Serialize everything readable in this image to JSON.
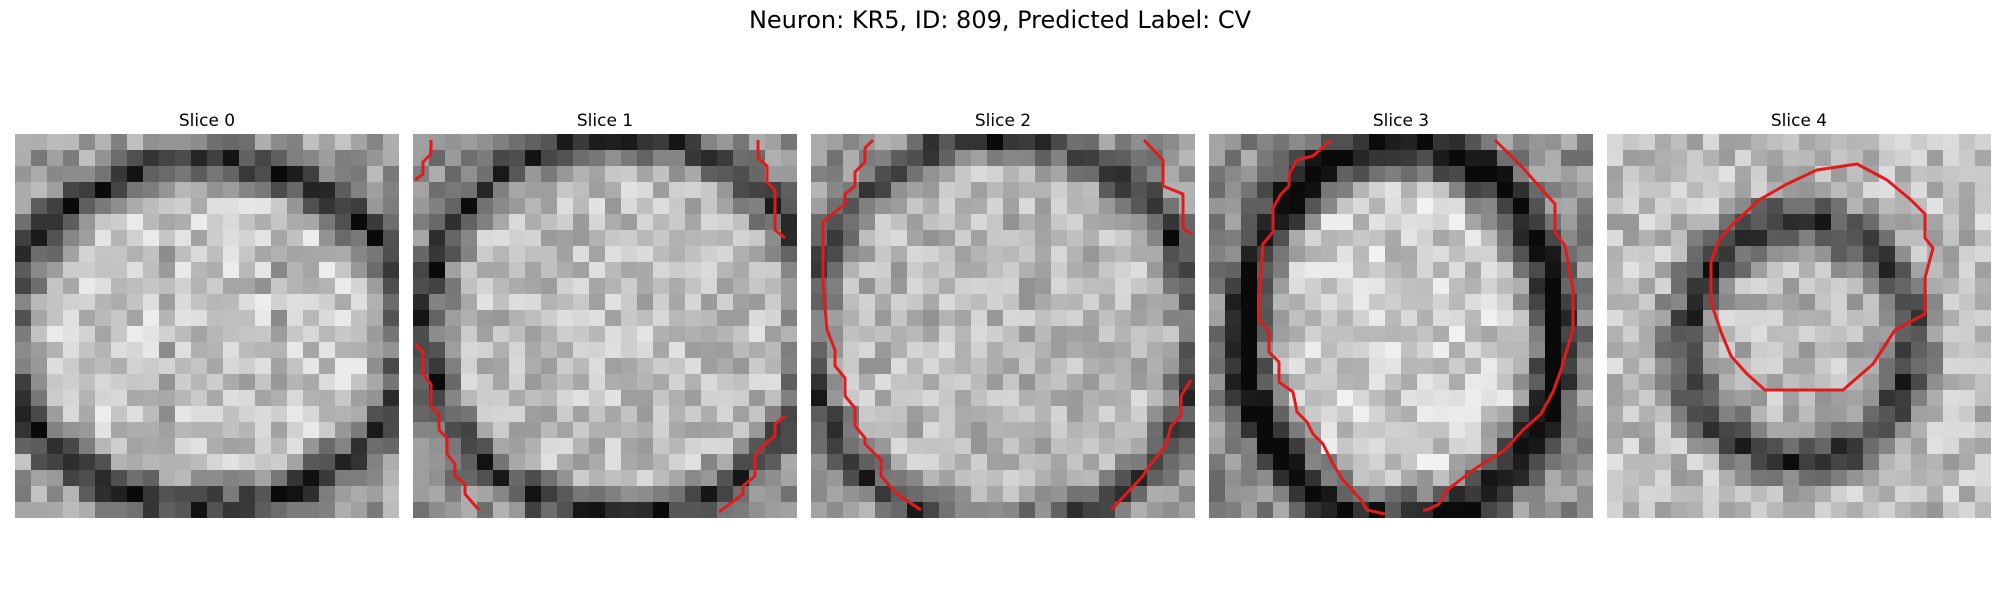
{
  "figure": {
    "title": "Neuron: KR5, ID: 809, Predicted Label: CV"
  },
  "panels": [
    {
      "title": "Slice 0"
    },
    {
      "title": "Slice 1"
    },
    {
      "title": "Slice 2"
    },
    {
      "title": "Slice 3"
    },
    {
      "title": "Slice 4"
    }
  ],
  "colors": {
    "contour": "#e31a1c",
    "colormap": "grayscale"
  }
}
